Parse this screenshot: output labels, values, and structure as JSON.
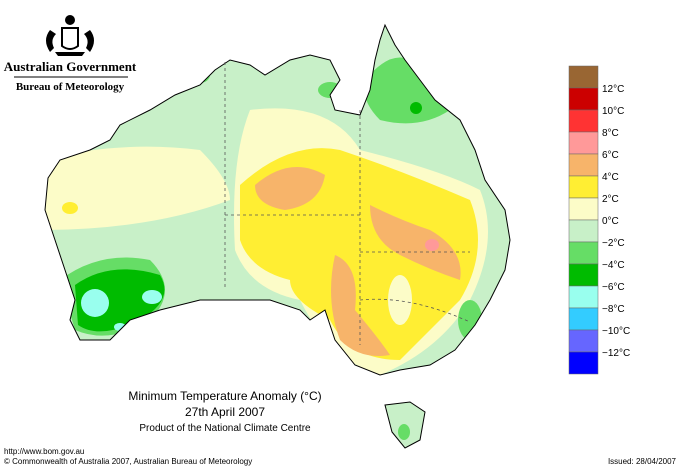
{
  "header": {
    "government": "Australian Government",
    "bureau": "Bureau of Meteorology"
  },
  "map": {
    "title": "Minimum Temperature Anomaly (°C)",
    "date": "27th April 2007",
    "product": "Product of the National Climate Centre"
  },
  "legend": {
    "colors": [
      "#996633",
      "#cc0000",
      "#ff3333",
      "#ff9999",
      "#f7b46a",
      "#ffee33",
      "#fcfcc8",
      "#c8f0c8",
      "#66dd66",
      "#00bb00",
      "#99ffee",
      "#33ccff",
      "#6666ff",
      "#0000ff"
    ],
    "labels": [
      "12°C",
      "10°C",
      "8°C",
      "6°C",
      "4°C",
      "2°C",
      "0°C",
      "−2°C",
      "−4°C",
      "−6°C",
      "−8°C",
      "−10°C",
      "−12°C"
    ]
  },
  "footer": {
    "url": "http://www.bom.gov.au",
    "copyright": "© Commonwealth of Australia 2007, Australian Bureau of Meteorology",
    "issued": "Issued: 28/04/2007"
  }
}
